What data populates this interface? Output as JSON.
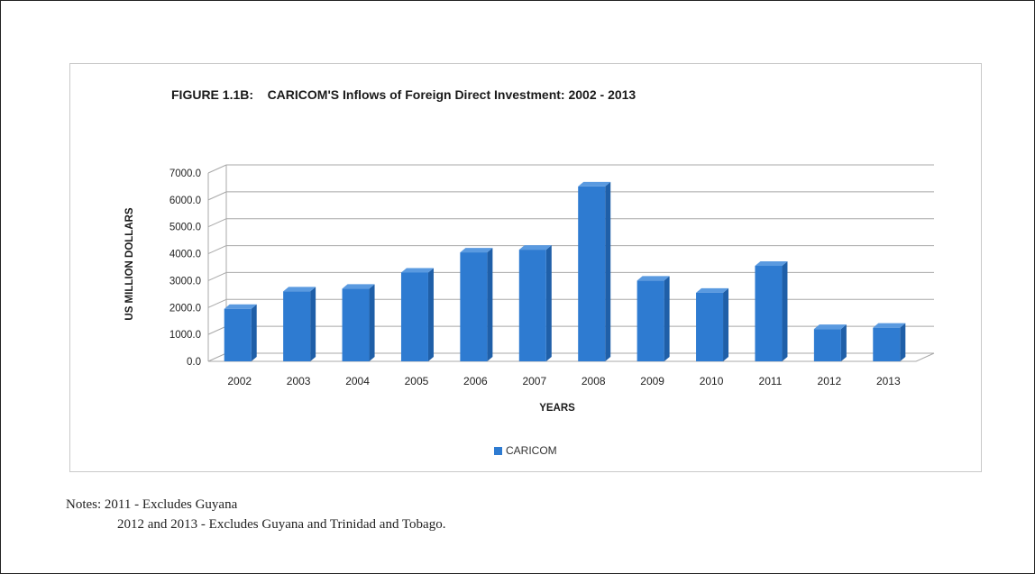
{
  "chart_data": {
    "type": "bar",
    "title": "FIGURE 1.1B:    CARICOM'S Inflows of Foreign Direct Investment: 2002 - 2013",
    "xlabel": "YEARS",
    "ylabel": "US MILLION DOLLARS",
    "categories": [
      "2002",
      "2003",
      "2004",
      "2005",
      "2006",
      "2007",
      "2008",
      "2009",
      "2010",
      "2011",
      "2012",
      "2013"
    ],
    "series": [
      {
        "name": "CARICOM",
        "values": [
          1950,
          2600,
          2700,
          3300,
          4050,
          4150,
          6500,
          3000,
          2550,
          3550,
          1200,
          1250
        ]
      }
    ],
    "ylim": [
      0,
      7000
    ],
    "yticks": [
      "0.0",
      "1000.0",
      "2000.0",
      "3000.0",
      "4000.0",
      "5000.0",
      "6000.0",
      "7000.0"
    ],
    "grid": true,
    "legend_position": "bottom",
    "bar_color": "#2e7bd1"
  },
  "notes": {
    "line1": "Notes: 2011 - Excludes Guyana",
    "line2": "2012 and 2013 - Excludes  Guyana and Trinidad and Tobago."
  }
}
